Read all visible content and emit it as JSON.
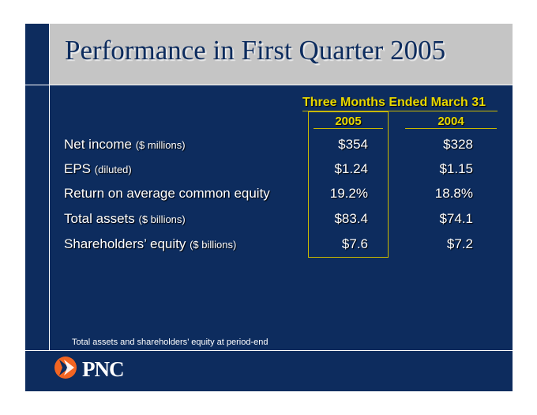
{
  "slide": {
    "title": "Performance in First Quarter 2005",
    "column_header": "Three Months Ended March 31",
    "years": [
      "2005",
      "2004"
    ],
    "rows": [
      {
        "label": "Net income",
        "sub": "($ millions)",
        "v2005": "$354",
        "v2004": "$328"
      },
      {
        "label": "EPS",
        "sub": "(diluted)",
        "v2005": "$1.24",
        "v2004": "$1.15"
      },
      {
        "label": "Return on average common equity",
        "sub": "",
        "v2005": "19.2%",
        "v2004": "18.8%"
      },
      {
        "label": "Total assets",
        "sub": "($ billions)",
        "v2005": "$83.4",
        "v2004": "$74.1"
      },
      {
        "label": "Shareholders’ equity",
        "sub": "($ billions)",
        "v2005": "$7.6",
        "v2004": "$7.2"
      }
    ],
    "footnote": "Total assets and shareholders’ equity at period-end"
  },
  "logo": {
    "text": "PNC",
    "icon": "pnc-logo-icon"
  },
  "colors": {
    "background": "#0d2c5e",
    "title_band": "#c5c5c5",
    "accent": "#e8d800",
    "logo_orange": "#f26522"
  }
}
